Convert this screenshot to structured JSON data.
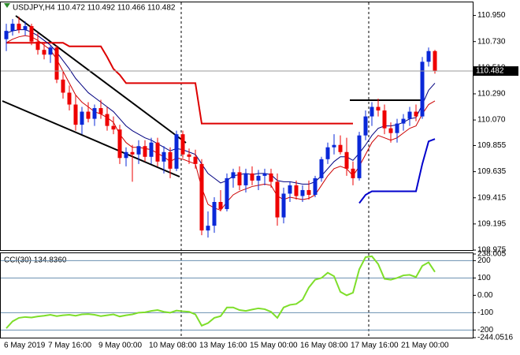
{
  "chart_data": [
    {
      "type": "candlestick",
      "title": "USDJPY,H4  110.472 110.492 110.466 110.482",
      "categories": [
        "6 May 2019",
        null,
        null,
        null,
        null,
        null,
        null,
        "7 May 16:00",
        null,
        null,
        null,
        null,
        null,
        null,
        null,
        "9 May 00:00",
        null,
        null,
        null,
        null,
        null,
        null,
        null,
        "10 May 08:00",
        null,
        null,
        null,
        null,
        null,
        null,
        null,
        "13 May 16:00",
        null,
        null,
        null,
        null,
        null,
        null,
        null,
        "15 May 00:00",
        null,
        null,
        null,
        null,
        null,
        null,
        null,
        "16 May 08:00",
        null,
        null,
        null,
        null,
        null,
        null,
        null,
        "17 May 16:00",
        null,
        null,
        null,
        null,
        null,
        null,
        null,
        "21 May 00:00",
        null,
        null,
        null,
        null,
        null
      ],
      "open": [
        110.75,
        110.82,
        110.88,
        110.83,
        110.86,
        110.73,
        110.66,
        110.62,
        110.68,
        110.41,
        110.3,
        110.2,
        110.03,
        110.14,
        110.08,
        110.17,
        110.12,
        110.02,
        109.99,
        109.75,
        109.8,
        109.78,
        109.85,
        109.76,
        109.88,
        109.72,
        109.8,
        109.66,
        109.95,
        109.78,
        109.76,
        109.7,
        109.14,
        109.18,
        109.38,
        109.32,
        109.58,
        109.63,
        109.52,
        109.62,
        109.56,
        109.6,
        109.62,
        109.55,
        109.25,
        109.45,
        109.52,
        109.43,
        109.48,
        109.44,
        109.58,
        109.74,
        109.84,
        109.86,
        109.8,
        109.66,
        109.58,
        109.94,
        110.1,
        110.18,
        110.15,
        110.0,
        109.96,
        110.04,
        110.08,
        110.14,
        110.1,
        110.56,
        110.65
      ],
      "high": [
        110.88,
        110.92,
        110.94,
        110.9,
        110.88,
        110.8,
        110.72,
        110.7,
        110.7,
        110.48,
        110.36,
        110.28,
        110.18,
        110.22,
        110.2,
        110.24,
        110.18,
        110.1,
        110.03,
        109.84,
        109.86,
        109.9,
        109.9,
        109.92,
        109.92,
        109.85,
        109.84,
        109.98,
        109.98,
        109.83,
        109.82,
        109.74,
        109.3,
        109.42,
        109.48,
        109.62,
        109.66,
        109.68,
        109.66,
        109.68,
        109.65,
        109.66,
        109.66,
        109.62,
        109.5,
        109.55,
        109.56,
        109.52,
        109.56,
        109.6,
        109.76,
        109.88,
        109.95,
        109.94,
        109.92,
        109.72,
        109.97,
        110.15,
        110.22,
        110.25,
        110.2,
        110.05,
        110.08,
        110.12,
        110.18,
        110.2,
        110.6,
        110.68,
        110.66
      ],
      "low": [
        110.65,
        110.78,
        110.8,
        110.78,
        110.7,
        110.62,
        110.58,
        110.55,
        110.38,
        110.25,
        110.15,
        109.98,
        109.95,
        110.05,
        110.02,
        110.08,
        109.98,
        109.95,
        109.7,
        109.68,
        109.55,
        109.7,
        109.72,
        109.7,
        109.68,
        109.62,
        109.58,
        109.64,
        109.75,
        109.7,
        109.66,
        109.1,
        109.08,
        109.12,
        109.3,
        109.3,
        109.5,
        109.48,
        109.46,
        109.52,
        109.48,
        109.52,
        109.5,
        109.18,
        109.2,
        109.38,
        109.4,
        109.38,
        109.4,
        109.42,
        109.55,
        109.7,
        109.78,
        109.78,
        109.6,
        109.52,
        109.56,
        109.9,
        110.02,
        110.1,
        109.95,
        109.88,
        109.88,
        109.98,
        110.02,
        110.06,
        110.08,
        110.52,
        110.46
      ],
      "close": [
        110.82,
        110.88,
        110.83,
        110.86,
        110.73,
        110.66,
        110.62,
        110.68,
        110.41,
        110.3,
        110.2,
        110.03,
        110.14,
        110.08,
        110.17,
        110.12,
        110.02,
        109.99,
        109.75,
        109.8,
        109.78,
        109.85,
        109.76,
        109.88,
        109.72,
        109.8,
        109.66,
        109.95,
        109.78,
        109.76,
        109.7,
        109.14,
        109.18,
        109.38,
        109.32,
        109.58,
        109.63,
        109.52,
        109.62,
        109.56,
        109.6,
        109.62,
        109.55,
        109.25,
        109.45,
        109.52,
        109.43,
        109.48,
        109.44,
        109.58,
        109.74,
        109.84,
        109.86,
        109.8,
        109.66,
        109.58,
        109.94,
        110.1,
        110.18,
        110.15,
        110.0,
        109.96,
        110.04,
        110.08,
        110.14,
        110.1,
        110.56,
        110.65,
        110.482
      ],
      "up_color": "#0a28d8",
      "down_color": "#ee0000",
      "series": [
        {
          "color": "#dd0000",
          "width": 2,
          "values": [
            110.72,
            110.72,
            110.72,
            110.72,
            110.72,
            110.72,
            110.72,
            110.72,
            110.72,
            110.72,
            110.69,
            110.69,
            110.69,
            110.69,
            110.69,
            110.69,
            110.6,
            110.5,
            110.45,
            110.38,
            110.38,
            110.38,
            110.38,
            110.38,
            110.38,
            110.38,
            110.38,
            110.38,
            110.38,
            110.38,
            110.38,
            110.04,
            110.04,
            110.04,
            110.04,
            110.04,
            110.04,
            110.04,
            110.04,
            110.04,
            110.04,
            110.04,
            110.04,
            110.04,
            110.04,
            110.04,
            110.04,
            110.04,
            110.04,
            110.04,
            110.04,
            110.04,
            110.04,
            110.04,
            110.04,
            110.04,
            null,
            null,
            null,
            null,
            null,
            null,
            null,
            null,
            null,
            null,
            null,
            null,
            null
          ]
        },
        {
          "color": "#0000cc",
          "width": 2,
          "values": [
            null,
            null,
            null,
            null,
            null,
            null,
            null,
            null,
            null,
            null,
            null,
            null,
            null,
            null,
            null,
            null,
            null,
            null,
            null,
            null,
            null,
            null,
            null,
            null,
            null,
            null,
            null,
            null,
            null,
            null,
            null,
            null,
            null,
            null,
            null,
            null,
            null,
            null,
            null,
            null,
            null,
            null,
            null,
            null,
            null,
            null,
            null,
            null,
            null,
            null,
            null,
            null,
            null,
            null,
            null,
            null,
            109.37,
            109.44,
            109.47,
            109.47,
            109.47,
            109.47,
            109.47,
            109.47,
            109.47,
            109.47,
            109.7,
            109.89,
            109.91
          ]
        },
        {
          "color": "#000080",
          "width": 1,
          "values": [
            110.8,
            110.82,
            110.83,
            110.83,
            110.81,
            110.78,
            110.74,
            110.7,
            110.64,
            110.57,
            110.5,
            110.42,
            110.36,
            110.3,
            110.26,
            110.22,
            110.18,
            110.14,
            110.08,
            110.02,
            109.98,
            109.95,
            109.92,
            109.9,
            109.87,
            109.84,
            109.81,
            109.83,
            109.82,
            109.8,
            109.78,
            109.7,
            109.62,
            109.58,
            109.54,
            109.56,
            109.6,
            109.61,
            109.62,
            109.61,
            109.62,
            109.62,
            109.61,
            109.56,
            109.55,
            109.55,
            109.54,
            109.53,
            109.53,
            109.55,
            109.6,
            109.66,
            109.72,
            109.76,
            109.76,
            109.73,
            109.79,
            109.86,
            109.94,
            110.0,
            110.02,
            110.02,
            110.03,
            110.05,
            110.08,
            110.09,
            110.2,
            110.32,
            110.38
          ]
        },
        {
          "color": "#cc0000",
          "width": 1,
          "values": [
            110.72,
            110.75,
            110.77,
            110.78,
            110.77,
            110.74,
            110.7,
            110.66,
            110.58,
            110.48,
            110.38,
            110.28,
            110.22,
            110.18,
            110.14,
            110.12,
            110.09,
            110.05,
            109.95,
            109.88,
            109.84,
            109.84,
            109.83,
            109.82,
            109.79,
            109.76,
            109.72,
            109.75,
            109.74,
            109.72,
            109.7,
            109.5,
            109.36,
            109.33,
            109.31,
            109.38,
            109.44,
            109.47,
            109.49,
            109.51,
            109.52,
            109.53,
            109.52,
            109.43,
            109.4,
            109.42,
            109.41,
            109.4,
            109.41,
            109.44,
            109.52,
            109.6,
            109.66,
            109.68,
            109.66,
            109.6,
            109.68,
            109.78,
            109.88,
            109.94,
            109.92,
            109.9,
            109.92,
            109.96,
            110.0,
            110.02,
            110.12,
            110.2,
            110.23
          ]
        }
      ],
      "price_label": "110.482",
      "ylim": [
        108.975,
        111.06
      ],
      "yticks": [
        {
          "value": 110.95,
          "label": "110.950"
        },
        {
          "value": 110.73,
          "label": "110.730"
        },
        {
          "value": 110.51,
          "label": "110.510"
        },
        {
          "value": 110.29,
          "label": "110.290"
        },
        {
          "value": 110.07,
          "label": "110.070"
        },
        109.855,
        109.635,
        109.415,
        109.195,
        108.975
      ]
    },
    {
      "type": "line",
      "title": "CCI(30) 134.8360",
      "color": "#7ede2a",
      "values": [
        -190,
        -150,
        -130,
        -125,
        -128,
        -122,
        -118,
        -112,
        -120,
        -115,
        -112,
        -118,
        -110,
        -108,
        -112,
        -120,
        -115,
        -110,
        -122,
        -115,
        -110,
        -100,
        -98,
        -90,
        -85,
        -95,
        -100,
        -88,
        -92,
        -95,
        -110,
        -175,
        -160,
        -130,
        -120,
        -70,
        -70,
        -85,
        -90,
        -82,
        -75,
        -80,
        -95,
        -130,
        -70,
        -55,
        -50,
        -25,
        45,
        90,
        100,
        130,
        110,
        20,
        0,
        15,
        150,
        220,
        225,
        180,
        95,
        90,
        100,
        115,
        118,
        105,
        170,
        190,
        134.836
      ],
      "ylim": [
        -244.0516,
        238.005
      ],
      "yticks": [
        238.005,
        200,
        100,
        {
          "value": 0,
          "label": "0.00"
        },
        -100,
        -200,
        -244.0516
      ]
    }
  ]
}
